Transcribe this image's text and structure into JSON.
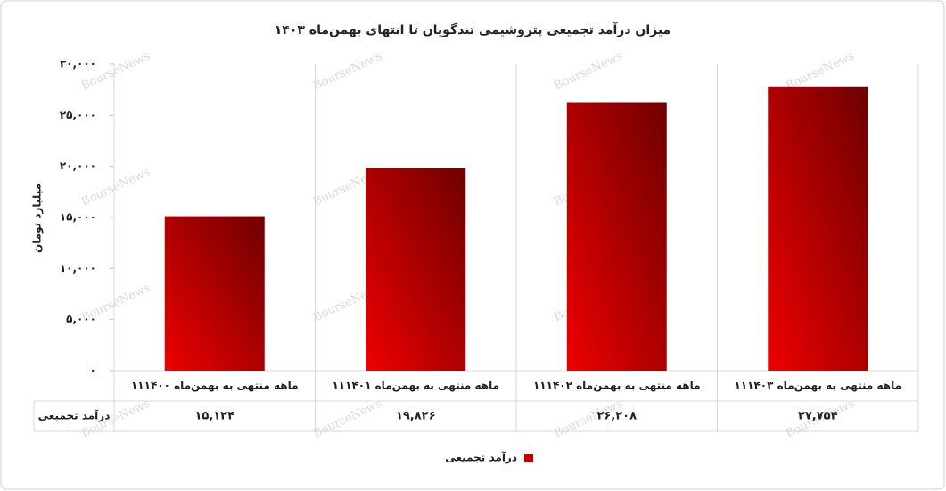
{
  "chart_data": {
    "type": "bar",
    "title": "میزان درآمد تجمیعی پتروشیمی تندگویان تا انتهای بهمن‌ماه ۱۴۰۳",
    "y_label": "میلیارد تومان",
    "categories": [
      "۱۱ماهه منتهی به بهمن‌ماه ۱۴۰۰",
      "۱۱ماهه منتهی به بهمن‌ماه ۱۴۰۱",
      "۱۱ماهه منتهی به بهمن‌ماه ۱۴۰۲",
      "۱۱ماهه منتهی به بهمن‌ماه ۱۴۰۳"
    ],
    "series": [
      {
        "name": "درآمد تجمیعی",
        "color": "#c00000",
        "values": [
          15124,
          19826,
          26208,
          27754
        ],
        "value_labels": [
          "۱۵,۱۲۴",
          "۱۹,۸۲۶",
          "۲۶,۲۰۸",
          "۲۷,۷۵۴"
        ]
      }
    ],
    "ylim": [
      0,
      30000
    ],
    "yticks": [
      {
        "value": 0,
        "label": "۰"
      },
      {
        "value": 5000,
        "label": "۵,۰۰۰"
      },
      {
        "value": 10000,
        "label": "۱۰,۰۰۰"
      },
      {
        "value": 15000,
        "label": "۱۵,۰۰۰"
      },
      {
        "value": 20000,
        "label": "۲۰,۰۰۰"
      },
      {
        "value": 25000,
        "label": "۲۵,۰۰۰"
      },
      {
        "value": 30000,
        "label": "۳۰,۰۰۰"
      }
    ],
    "grid": false,
    "legend": "bottom"
  },
  "watermark": "BourseNews"
}
